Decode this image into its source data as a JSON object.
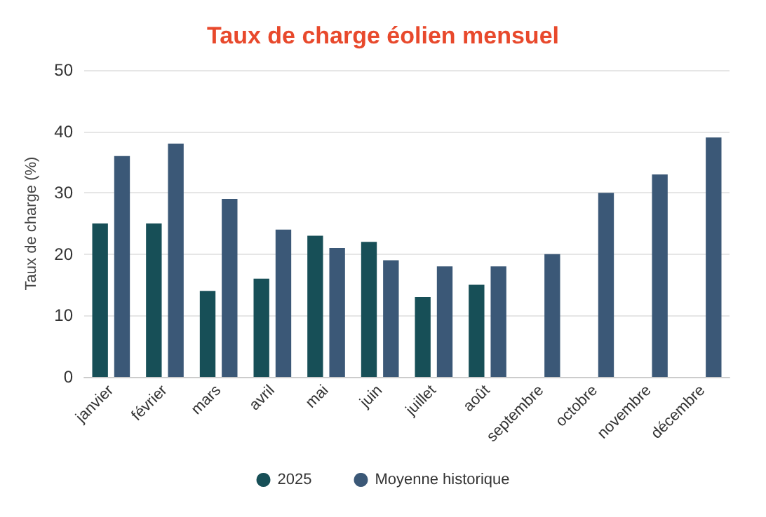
{
  "chart_data": {
    "type": "bar",
    "title": "Taux de charge éolien mensuel",
    "ylabel": "Taux de charge (%)",
    "categories": [
      "janvier",
      "février",
      "mars",
      "avril",
      "mai",
      "juin",
      "juillet",
      "août",
      "septembre",
      "octobre",
      "novembre",
      "décembre"
    ],
    "series": [
      {
        "name": "2025",
        "color": "#174f57",
        "values": [
          25,
          25,
          14,
          16,
          23,
          22,
          13,
          15,
          null,
          null,
          null,
          null
        ]
      },
      {
        "name": "Moyenne historique",
        "color": "#3b5877",
        "values": [
          36,
          38,
          29,
          24,
          21,
          19,
          18,
          18,
          20,
          30,
          33,
          39
        ]
      }
    ],
    "ylim": [
      0,
      50
    ],
    "yticks": [
      0,
      10,
      20,
      30,
      40,
      50
    ],
    "grid": "y",
    "legend": "bottom"
  }
}
